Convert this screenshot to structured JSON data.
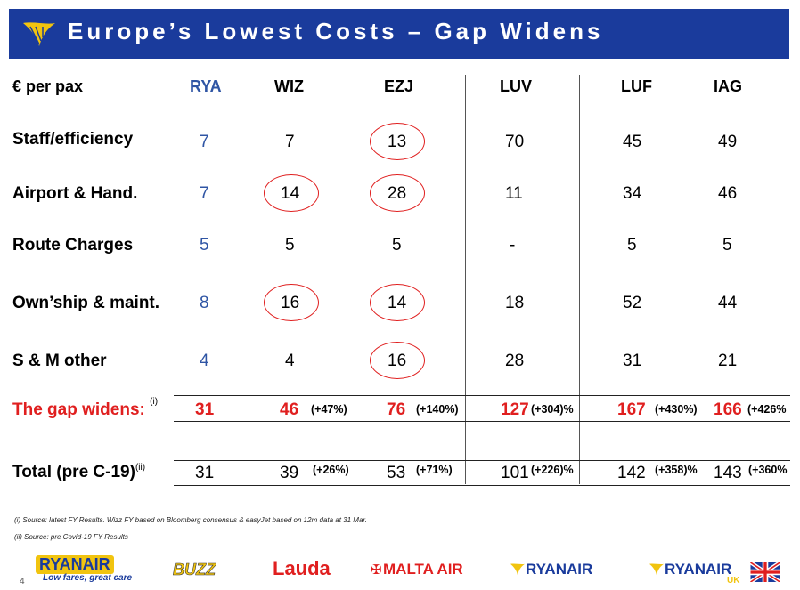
{
  "title": "Europe’s Lowest Costs – Gap Widens",
  "header": {
    "label": "€ per pax",
    "columns": [
      "RYA",
      "WIZ",
      "EZJ",
      "LUV",
      "LUF",
      "IAG"
    ]
  },
  "rows": [
    {
      "label": "Staff/efficiency",
      "values": [
        "7",
        "7",
        "13",
        "70",
        "45",
        "49"
      ]
    },
    {
      "label": "Airport & Hand.",
      "values": [
        "7",
        "14",
        "28",
        "11",
        "34",
        "46"
      ]
    },
    {
      "label": "Route Charges",
      "values": [
        "5",
        "5",
        "5",
        "-",
        "5",
        "5"
      ]
    },
    {
      "label": "Own’ship & maint.",
      "values": [
        "8",
        "16",
        "14",
        "18",
        "52",
        "44"
      ]
    },
    {
      "label": "S & M other",
      "values": [
        "4",
        "4",
        "16",
        "28",
        "31",
        "21"
      ]
    }
  ],
  "gap_row": {
    "label": "The gap widens:",
    "sup": "(i)",
    "values": [
      "31",
      "46",
      "76",
      "127",
      "167",
      "166"
    ],
    "pcts": [
      "",
      "(+47%)",
      "(+140%)",
      "(+304)%",
      "(+430%)",
      "(+426%"
    ]
  },
  "total_row": {
    "label": "Total (pre C-19)",
    "sup": "(ii)",
    "values": [
      "31",
      "39",
      "53",
      "101",
      "142",
      "143"
    ],
    "pcts": [
      "",
      "(+26%)",
      "(+71%)",
      "(+226)%",
      "(+358)%",
      "(+360%"
    ]
  },
  "footnotes": [
    "(i)  Source: latest FY Results. Wizz FY based on Bloomberg consensus & easyJet based on 12m data at 31 Mar.",
    "(ii) Source: pre Covid-19 FY Results"
  ],
  "page_number": "4",
  "logos": {
    "ryanair_main": "RYANAIR",
    "ryanair_tagline": "Low fares, great care",
    "buzz": "BUZZ",
    "lauda": "Lauda",
    "malta": "MALTA AIR",
    "ryanair_dac": "RYANAIR",
    "ryanair_uk": "RYANAIR",
    "ryanair_uk_suffix": "UK"
  },
  "colors": {
    "title_bg": "#1a3b9c",
    "accent_red": "#e01f1f",
    "rya_blue": "#2f55a4",
    "logo_gold": "#f1c40f"
  }
}
